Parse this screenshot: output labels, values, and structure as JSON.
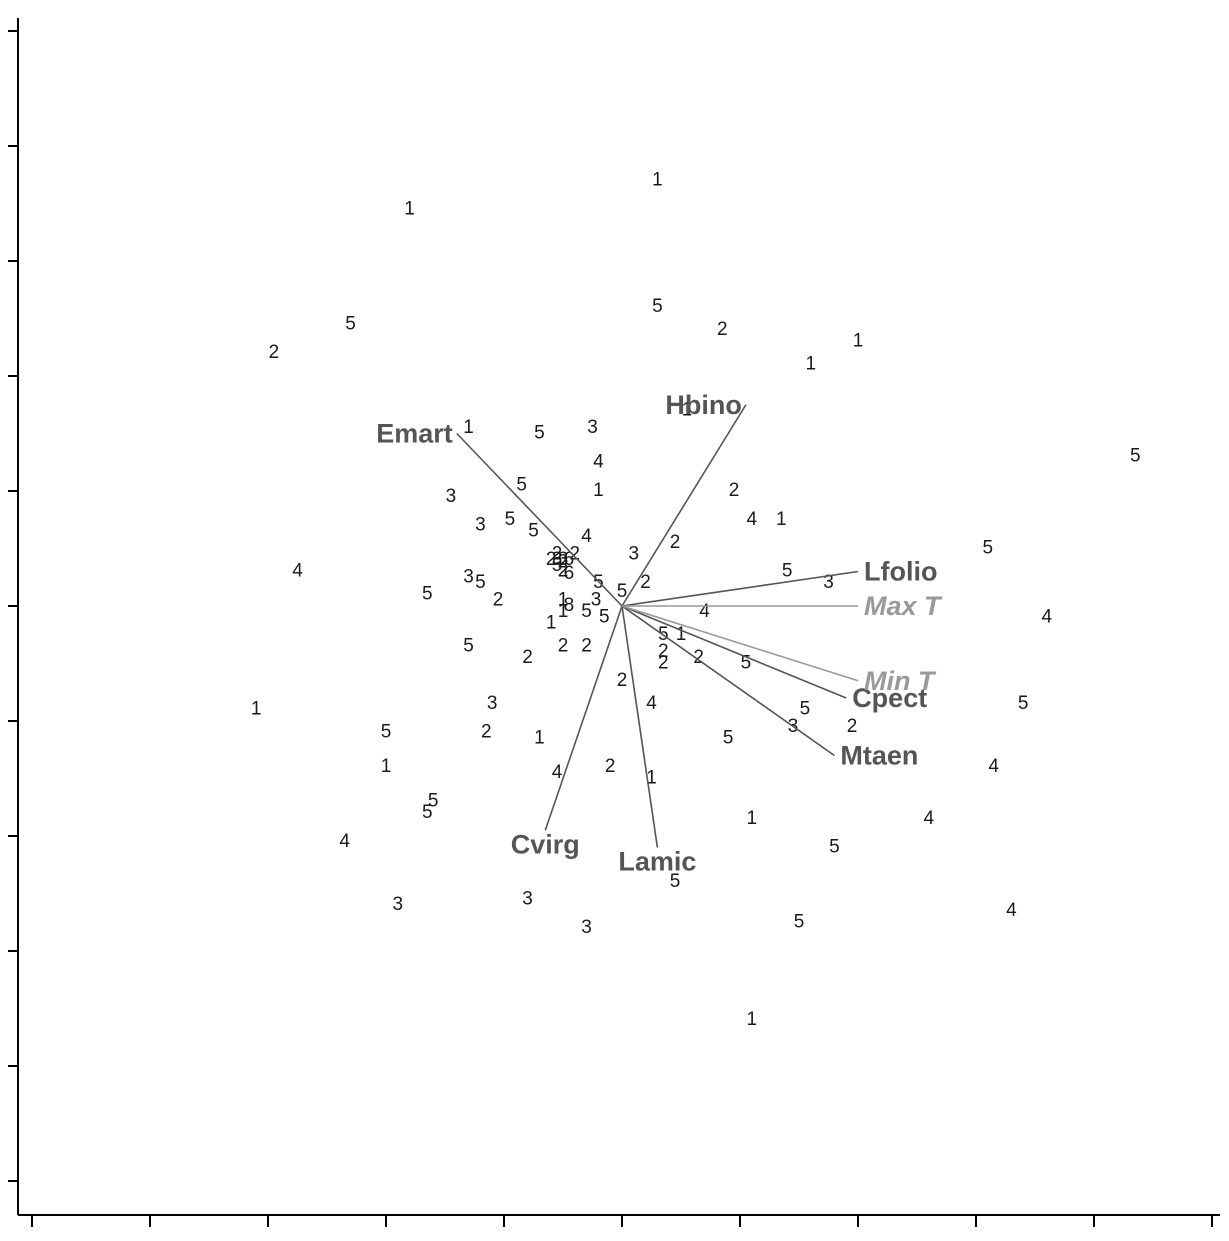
{
  "chart_data": {
    "type": "scatter",
    "title": "",
    "xlabel": "",
    "ylabel": "",
    "xlim": [
      -5.2,
      5.0
    ],
    "ylim": [
      -5.2,
      5.2
    ],
    "grid": false,
    "origin": [
      0,
      0
    ],
    "colors": {
      "site_points": "#1a1a1a",
      "species_vectors": "#555555",
      "supplementary_vectors": "#999999"
    },
    "points": [
      {
        "x": 0.3,
        "y": 3.7,
        "label": "1"
      },
      {
        "x": -1.8,
        "y": 3.45,
        "label": "1"
      },
      {
        "x": 0.3,
        "y": 2.6,
        "label": "5"
      },
      {
        "x": -2.3,
        "y": 2.45,
        "label": "5"
      },
      {
        "x": -2.95,
        "y": 2.2,
        "label": "2"
      },
      {
        "x": 0.85,
        "y": 2.4,
        "label": "2"
      },
      {
        "x": 2.0,
        "y": 2.3,
        "label": "1"
      },
      {
        "x": 1.6,
        "y": 2.1,
        "label": "1"
      },
      {
        "x": 0.55,
        "y": 1.7,
        "label": "1"
      },
      {
        "x": -1.3,
        "y": 1.55,
        "label": "1"
      },
      {
        "x": -0.7,
        "y": 1.5,
        "label": "5"
      },
      {
        "x": -0.25,
        "y": 1.55,
        "label": "3"
      },
      {
        "x": -0.2,
        "y": 1.25,
        "label": "4"
      },
      {
        "x": -0.85,
        "y": 1.05,
        "label": "5"
      },
      {
        "x": -0.2,
        "y": 1.0,
        "label": "1"
      },
      {
        "x": 0.95,
        "y": 1.0,
        "label": "2"
      },
      {
        "x": -1.45,
        "y": 0.95,
        "label": "3"
      },
      {
        "x": -0.95,
        "y": 0.75,
        "label": "5"
      },
      {
        "x": -1.2,
        "y": 0.7,
        "label": "3"
      },
      {
        "x": 1.1,
        "y": 0.75,
        "label": "4"
      },
      {
        "x": 1.35,
        "y": 0.75,
        "label": "1"
      },
      {
        "x": -0.75,
        "y": 0.65,
        "label": "5"
      },
      {
        "x": -0.3,
        "y": 0.6,
        "label": "4"
      },
      {
        "x": 0.45,
        "y": 0.55,
        "label": "2"
      },
      {
        "x": 0.1,
        "y": 0.45,
        "label": "3"
      },
      {
        "x": -0.55,
        "y": 0.45,
        "label": "2"
      },
      {
        "x": -0.6,
        "y": 0.4,
        "label": "2"
      },
      {
        "x": -0.55,
        "y": 0.4,
        "label": "3"
      },
      {
        "x": -0.45,
        "y": 0.4,
        "label": "6"
      },
      {
        "x": -0.4,
        "y": 0.45,
        "label": "2"
      },
      {
        "x": -0.55,
        "y": 0.35,
        "label": "5"
      },
      {
        "x": -0.5,
        "y": 0.3,
        "label": "2"
      },
      {
        "x": -0.45,
        "y": 0.28,
        "label": "6"
      },
      {
        "x": -0.5,
        "y": 0.4,
        "label": "3"
      },
      {
        "x": -0.5,
        "y": 0.38,
        "label": "2"
      },
      {
        "x": 3.1,
        "y": 0.5,
        "label": "5"
      },
      {
        "x": 4.35,
        "y": 1.3,
        "label": "5"
      },
      {
        "x": -2.75,
        "y": 0.3,
        "label": "4"
      },
      {
        "x": -1.3,
        "y": 0.25,
        "label": "3"
      },
      {
        "x": -1.2,
        "y": 0.2,
        "label": "5"
      },
      {
        "x": -1.65,
        "y": 0.1,
        "label": "5"
      },
      {
        "x": -1.05,
        "y": 0.05,
        "label": "2"
      },
      {
        "x": -0.2,
        "y": 0.2,
        "label": "5"
      },
      {
        "x": 0.0,
        "y": 0.12,
        "label": "5"
      },
      {
        "x": 0.2,
        "y": 0.2,
        "label": "2"
      },
      {
        "x": -0.22,
        "y": 0.05,
        "label": "3"
      },
      {
        "x": -0.5,
        "y": 0.05,
        "label": "1"
      },
      {
        "x": -0.45,
        "y": 0.0,
        "label": "8"
      },
      {
        "x": -0.5,
        "y": -0.05,
        "label": "1"
      },
      {
        "x": -0.3,
        "y": -0.05,
        "label": "5"
      },
      {
        "x": -0.15,
        "y": -0.1,
        "label": "5"
      },
      {
        "x": -0.6,
        "y": -0.15,
        "label": "1"
      },
      {
        "x": 1.4,
        "y": 0.3,
        "label": "5"
      },
      {
        "x": 1.75,
        "y": 0.2,
        "label": "3"
      },
      {
        "x": 0.7,
        "y": -0.05,
        "label": "4"
      },
      {
        "x": 3.6,
        "y": -0.1,
        "label": "4"
      },
      {
        "x": 0.35,
        "y": -0.25,
        "label": "5"
      },
      {
        "x": 0.5,
        "y": -0.25,
        "label": "1"
      },
      {
        "x": -1.3,
        "y": -0.35,
        "label": "5"
      },
      {
        "x": -0.5,
        "y": -0.35,
        "label": "2"
      },
      {
        "x": -0.3,
        "y": -0.35,
        "label": "2"
      },
      {
        "x": 0.35,
        "y": -0.4,
        "label": "2"
      },
      {
        "x": 0.65,
        "y": -0.45,
        "label": "2"
      },
      {
        "x": -0.8,
        "y": -0.45,
        "label": "2"
      },
      {
        "x": 1.05,
        "y": -0.5,
        "label": "5"
      },
      {
        "x": 0.35,
        "y": -0.5,
        "label": "2"
      },
      {
        "x": 0.0,
        "y": -0.65,
        "label": "2"
      },
      {
        "x": 0.25,
        "y": -0.85,
        "label": "4"
      },
      {
        "x": -1.1,
        "y": -0.85,
        "label": "3"
      },
      {
        "x": -3.1,
        "y": -0.9,
        "label": "1"
      },
      {
        "x": 1.55,
        "y": -0.9,
        "label": "5"
      },
      {
        "x": 3.4,
        "y": -0.85,
        "label": "5"
      },
      {
        "x": 1.45,
        "y": -1.05,
        "label": "3"
      },
      {
        "x": 1.95,
        "y": -1.05,
        "label": "2"
      },
      {
        "x": -2.0,
        "y": -1.1,
        "label": "5"
      },
      {
        "x": -1.15,
        "y": -1.1,
        "label": "2"
      },
      {
        "x": -0.7,
        "y": -1.15,
        "label": "1"
      },
      {
        "x": 0.9,
        "y": -1.15,
        "label": "5"
      },
      {
        "x": -2.0,
        "y": -1.4,
        "label": "1"
      },
      {
        "x": -0.55,
        "y": -1.45,
        "label": "4"
      },
      {
        "x": -0.1,
        "y": -1.4,
        "label": "2"
      },
      {
        "x": 0.25,
        "y": -1.5,
        "label": "1"
      },
      {
        "x": 3.15,
        "y": -1.4,
        "label": "4"
      },
      {
        "x": -1.6,
        "y": -1.7,
        "label": "5"
      },
      {
        "x": -1.65,
        "y": -1.8,
        "label": "5"
      },
      {
        "x": 1.1,
        "y": -1.85,
        "label": "1"
      },
      {
        "x": 2.6,
        "y": -1.85,
        "label": "4"
      },
      {
        "x": -2.35,
        "y": -2.05,
        "label": "4"
      },
      {
        "x": 1.8,
        "y": -2.1,
        "label": "5"
      },
      {
        "x": 0.45,
        "y": -2.4,
        "label": "5"
      },
      {
        "x": -1.9,
        "y": -2.6,
        "label": "3"
      },
      {
        "x": -0.8,
        "y": -2.55,
        "label": "3"
      },
      {
        "x": 3.3,
        "y": -2.65,
        "label": "4"
      },
      {
        "x": -0.3,
        "y": -2.8,
        "label": "3"
      },
      {
        "x": 1.5,
        "y": -2.75,
        "label": "5"
      },
      {
        "x": 1.1,
        "y": -3.6,
        "label": "1"
      }
    ],
    "species_vectors": [
      {
        "name": "Hbino",
        "x": 1.05,
        "y": 1.75,
        "label_anchor": "end"
      },
      {
        "name": "Emart",
        "x": -1.4,
        "y": 1.5,
        "label_anchor": "end"
      },
      {
        "name": "Lfolio",
        "x": 2.0,
        "y": 0.3,
        "label_anchor": "start"
      },
      {
        "name": "Cpect",
        "x": 1.9,
        "y": -0.8,
        "label_anchor": "start"
      },
      {
        "name": "Mtaen",
        "x": 1.8,
        "y": -1.3,
        "label_anchor": "start"
      },
      {
        "name": "Cvirg",
        "x": -0.65,
        "y": -1.95,
        "label_anchor": "middle"
      },
      {
        "name": "Lamic",
        "x": 0.3,
        "y": -2.1,
        "label_anchor": "middle"
      }
    ],
    "supplementary_vectors": [
      {
        "name": "Max T",
        "x": 2.0,
        "y": 0.0,
        "label_anchor": "start"
      },
      {
        "name": "Min T",
        "x": 2.0,
        "y": -0.65,
        "label_anchor": "start"
      }
    ],
    "x_ticks": [
      -5,
      -4,
      -3,
      -2,
      -1,
      0,
      1,
      2,
      3,
      4,
      5
    ],
    "y_ticks": [
      5,
      4,
      3,
      2,
      1,
      0,
      -1,
      -2,
      -3,
      -4,
      -5
    ]
  }
}
